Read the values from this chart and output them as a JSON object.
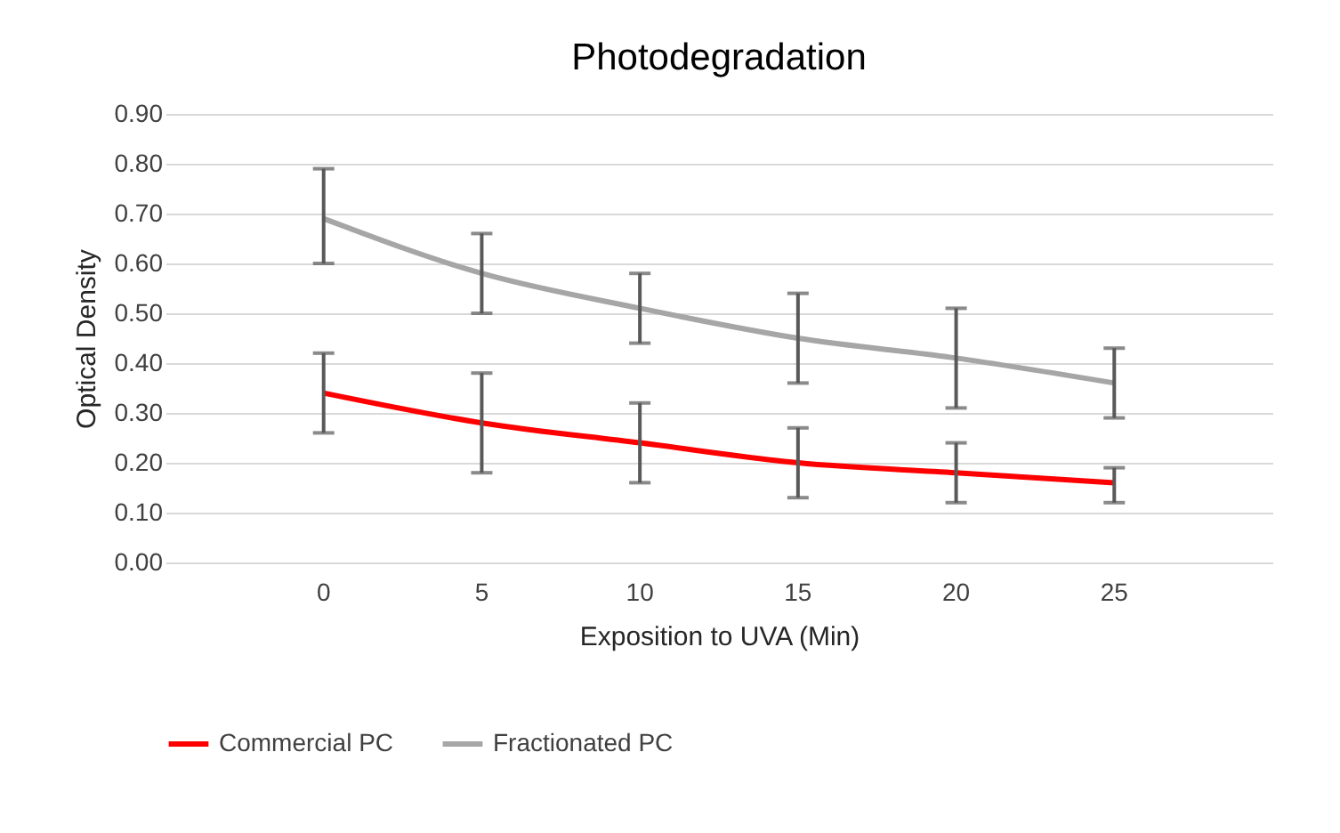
{
  "chart_data": {
    "type": "line",
    "title": "Photodegradation",
    "xlabel": "Exposition to UVA  (Min)",
    "ylabel": "Optical Density",
    "categories": [
      "0",
      "5",
      "10",
      "15",
      "20",
      "25"
    ],
    "series": [
      {
        "name": "Commercial PC",
        "color": "#ff0000",
        "values": [
          0.34,
          0.28,
          0.24,
          0.2,
          0.18,
          0.16
        ],
        "errors": [
          [
            0.26,
            0.42
          ],
          [
            0.18,
            0.38
          ],
          [
            0.16,
            0.32
          ],
          [
            0.13,
            0.27
          ],
          [
            0.12,
            0.24
          ],
          [
            0.12,
            0.19
          ]
        ]
      },
      {
        "name": "Fractionated PC",
        "color": "#a6a6a6",
        "values": [
          0.69,
          0.58,
          0.51,
          0.45,
          0.41,
          0.36
        ],
        "errors": [
          [
            0.6,
            0.79
          ],
          [
            0.5,
            0.66
          ],
          [
            0.44,
            0.58
          ],
          [
            0.36,
            0.54
          ],
          [
            0.31,
            0.51
          ],
          [
            0.29,
            0.43
          ]
        ]
      }
    ],
    "ylim": [
      0,
      0.9
    ],
    "yticks": [
      {
        "value": 0,
        "label": "0.00"
      },
      {
        "value": 0.1,
        "label": "0.10"
      },
      {
        "value": 0.2,
        "label": "0.20"
      },
      {
        "value": 0.3,
        "label": "0.30"
      },
      {
        "value": 0.4,
        "label": "0.40"
      },
      {
        "value": 0.5,
        "label": "0.50"
      },
      {
        "value": 0.6,
        "label": "0.60"
      },
      {
        "value": 0.7,
        "label": "0.70"
      },
      {
        "value": 0.8,
        "label": "0.80"
      },
      {
        "value": 0.9,
        "label": "0.90"
      }
    ],
    "grid": "y",
    "legend": "bottom",
    "marker": "none",
    "line_style": "solid"
  }
}
